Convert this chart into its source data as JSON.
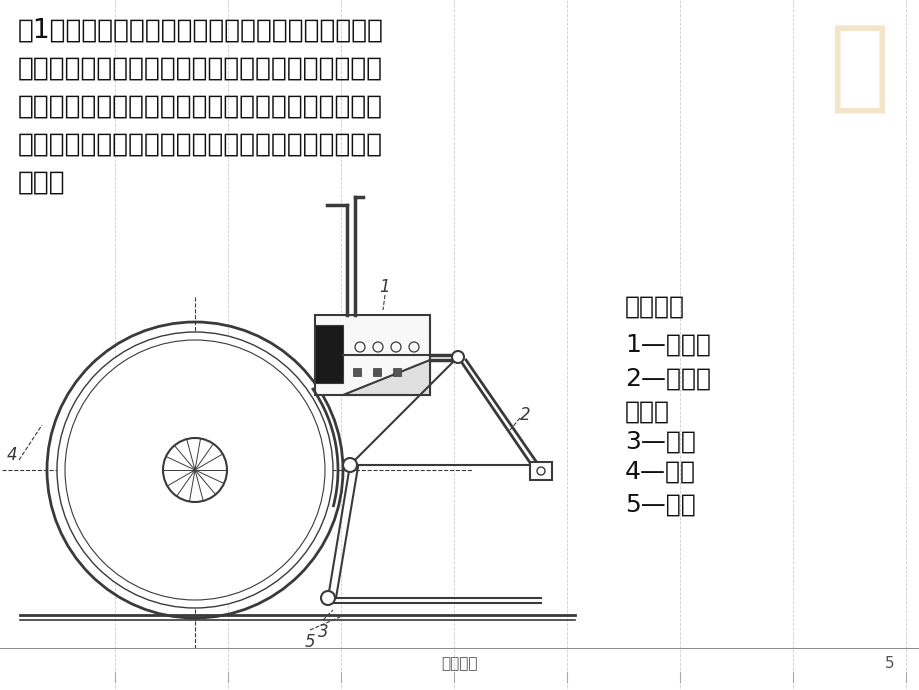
{
  "bg_color": "#ffffff",
  "title_text_lines": [
    "（1）、闸瓦制动：又称为蹏面制功。它是最常用的",
    "一种制动方式。制动时闸瓦压紧车轮，车轮和闸瓦之",
    "间发生摩擦，电动车辆的动能大部分通过车轮和闸瓦",
    "之间的摩擦变成热能，散发到空气中，而达到减速的",
    "目的。"
  ],
  "legend_title": "闸瓦制动",
  "legend_items": [
    "1—制动缸",
    "2—基础制",
    "动装置",
    "3—闸瓦",
    "4—轮对",
    "5—钉轨"
  ],
  "footer_text": "技术知识",
  "page_number": "5",
  "grid_color": "#cccccc",
  "text_color": "#000000",
  "diagram_color": "#3a3a3a",
  "bg_stamp_color": "#e8d0a0"
}
